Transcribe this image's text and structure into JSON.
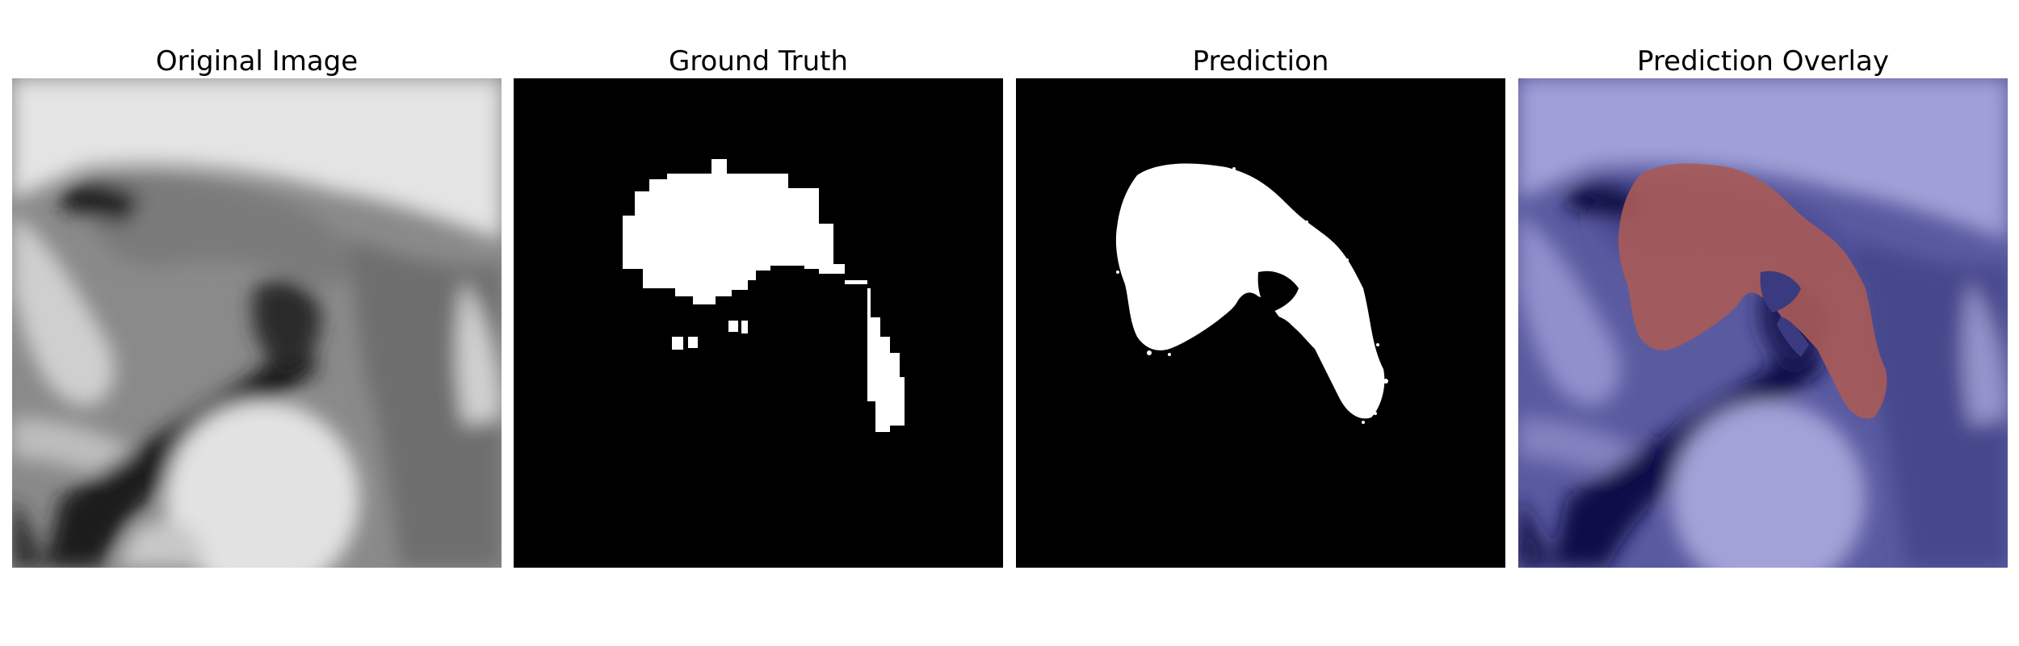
{
  "figure": {
    "panels": [
      {
        "title": "Original Image"
      },
      {
        "title": "Ground Truth"
      },
      {
        "title": "Prediction"
      },
      {
        "title": "Prediction Overlay"
      }
    ]
  }
}
